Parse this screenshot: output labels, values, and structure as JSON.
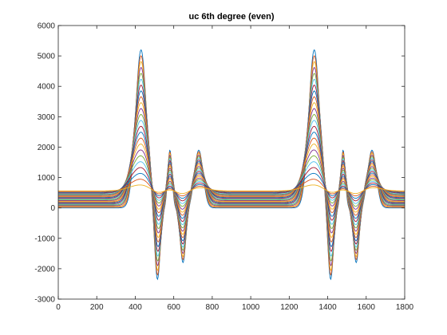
{
  "chart_data": {
    "type": "line",
    "title": "uc 6th degree (even)",
    "xlabel": "",
    "ylabel": "",
    "xlim": [
      0,
      1800
    ],
    "ylim": [
      -3000,
      6000
    ],
    "xticks": [
      0,
      200,
      400,
      600,
      800,
      1000,
      1200,
      1400,
      1600,
      1800
    ],
    "yticks": [
      -3000,
      -2000,
      -1000,
      0,
      1000,
      2000,
      3000,
      4000,
      5000,
      6000
    ],
    "grid": false,
    "legend": "none",
    "period": 900,
    "baseline_start": 0,
    "baseline_end": 560,
    "series_colors": [
      "#0072bd",
      "#d95319",
      "#edb120",
      "#7e2f8e",
      "#77ac30",
      "#4dbeee",
      "#a2142f"
    ],
    "series_count": 24,
    "features": [
      {
        "center": 430,
        "width_start": 28,
        "width_end": 60,
        "amp_start": 5200,
        "amp_end": 200
      },
      {
        "center": 515,
        "width_start": 14,
        "width_end": 35,
        "amp_start": -2400,
        "amp_end": -120
      },
      {
        "center": 580,
        "width_start": 11,
        "width_end": 30,
        "amp_start": 1900,
        "amp_end": 60
      },
      {
        "center": 648,
        "width_start": 14,
        "width_end": 35,
        "amp_start": -1800,
        "amp_end": -120
      },
      {
        "center": 730,
        "width_start": 22,
        "width_end": 50,
        "amp_start": 1900,
        "amp_end": 110
      }
    ]
  }
}
